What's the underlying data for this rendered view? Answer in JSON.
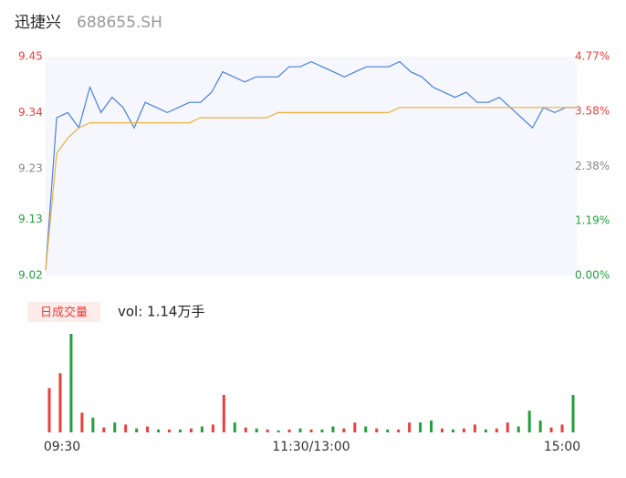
{
  "header": {
    "name": "迅捷兴",
    "code": "688655.SH"
  },
  "chart_data": [
    {
      "type": "line",
      "x": [
        0,
        5,
        10,
        15,
        20,
        25,
        30,
        35,
        40,
        45,
        50,
        55,
        60,
        65,
        70,
        75,
        80,
        85,
        90,
        95,
        100,
        105,
        110,
        115,
        120,
        125,
        130,
        135,
        140,
        145,
        150,
        155,
        160,
        165,
        170,
        175,
        180,
        185,
        190,
        195,
        200,
        205,
        210,
        215,
        220,
        225,
        230,
        235,
        240
      ],
      "series": [
        {
          "name": "price",
          "color": "#4a7fe3",
          "values": [
            9.03,
            9.33,
            9.34,
            9.31,
            9.39,
            9.34,
            9.37,
            9.35,
            9.31,
            9.36,
            9.35,
            9.34,
            9.35,
            9.36,
            9.36,
            9.38,
            9.42,
            9.41,
            9.4,
            9.41,
            9.41,
            9.41,
            9.43,
            9.43,
            9.44,
            9.43,
            9.42,
            9.41,
            9.42,
            9.43,
            9.43,
            9.43,
            9.44,
            9.42,
            9.41,
            9.39,
            9.38,
            9.37,
            9.38,
            9.36,
            9.36,
            9.37,
            9.35,
            9.33,
            9.31,
            9.35,
            9.34,
            9.35,
            9.35
          ]
        },
        {
          "name": "average",
          "color": "#f0b03c",
          "values": [
            9.03,
            9.26,
            9.29,
            9.31,
            9.32,
            9.32,
            9.32,
            9.32,
            9.32,
            9.32,
            9.32,
            9.32,
            9.32,
            9.32,
            9.33,
            9.33,
            9.33,
            9.33,
            9.33,
            9.33,
            9.33,
            9.34,
            9.34,
            9.34,
            9.34,
            9.34,
            9.34,
            9.34,
            9.34,
            9.34,
            9.34,
            9.34,
            9.35,
            9.35,
            9.35,
            9.35,
            9.35,
            9.35,
            9.35,
            9.35,
            9.35,
            9.35,
            9.35,
            9.35,
            9.35,
            9.35,
            9.35,
            9.35,
            9.35
          ]
        }
      ],
      "xlim": [
        0,
        240
      ],
      "ylim": [
        9.02,
        9.45
      ],
      "yticks": [
        9.45,
        9.34,
        9.23,
        9.13,
        9.02
      ],
      "ytick_colors": [
        "#e8413b",
        "#e8413b",
        "#888888",
        "#22a03a",
        "#22a03a"
      ],
      "y2lim": [
        0,
        4.77
      ],
      "y2ticks": [
        {
          "value": 4.77,
          "label": "4.77%"
        },
        {
          "value": 3.58,
          "label": "3.58%"
        },
        {
          "value": 2.38,
          "label": "2.38%"
        },
        {
          "value": 1.19,
          "label": "1.19%"
        },
        {
          "value": 0,
          "label": "0.00%"
        }
      ],
      "y2tick_colors": [
        "#e8413b",
        "#e8413b",
        "#888888",
        "#22a03a",
        "#22a03a"
      ]
    },
    {
      "type": "bar",
      "legend_button": "日成交量",
      "label": "vol: 1.14万手",
      "x": [
        0,
        5,
        10,
        15,
        20,
        25,
        30,
        35,
        40,
        45,
        50,
        55,
        60,
        65,
        70,
        75,
        80,
        85,
        90,
        95,
        100,
        105,
        110,
        115,
        120,
        125,
        130,
        135,
        140,
        145,
        150,
        155,
        160,
        165,
        170,
        175,
        180,
        185,
        190,
        195,
        200,
        205,
        210,
        215,
        220,
        225,
        230,
        235,
        240
      ],
      "values": [
        45,
        60,
        100,
        20,
        15,
        5,
        10,
        8,
        4,
        6,
        3,
        3,
        3,
        4,
        6,
        8,
        38,
        10,
        5,
        4,
        3,
        2,
        3,
        4,
        3,
        3,
        6,
        4,
        10,
        6,
        4,
        3,
        3,
        10,
        10,
        12,
        4,
        3,
        4,
        8,
        3,
        4,
        10,
        6,
        22,
        12,
        5,
        8,
        38
      ],
      "colors": [
        "#e8413b",
        "#e8413b",
        "#22a03a",
        "#e8413b",
        "#22a03a",
        "#e8413b",
        "#22a03a",
        "#e8413b",
        "#22a03a",
        "#e8413b",
        "#22a03a",
        "#e8413b",
        "#22a03a",
        "#e8413b",
        "#22a03a",
        "#e8413b",
        "#e8413b",
        "#22a03a",
        "#e8413b",
        "#22a03a",
        "#e8413b",
        "#22a03a",
        "#e8413b",
        "#22a03a",
        "#e8413b",
        "#22a03a",
        "#22a03a",
        "#e8413b",
        "#e8413b",
        "#22a03a",
        "#e8413b",
        "#22a03a",
        "#e8413b",
        "#e8413b",
        "#22a03a",
        "#22a03a",
        "#e8413b",
        "#22a03a",
        "#e8413b",
        "#e8413b",
        "#22a03a",
        "#e8413b",
        "#e8413b",
        "#22a03a",
        "#22a03a",
        "#22a03a",
        "#e8413b",
        "#e8413b",
        "#22a03a"
      ],
      "xlim": [
        0,
        240
      ],
      "ylim": [
        0,
        100
      ],
      "xticks": [
        {
          "value": 0,
          "label": "09:30"
        },
        {
          "value": 120,
          "label": "11:30/13:00"
        },
        {
          "value": 240,
          "label": "15:00"
        }
      ]
    }
  ]
}
